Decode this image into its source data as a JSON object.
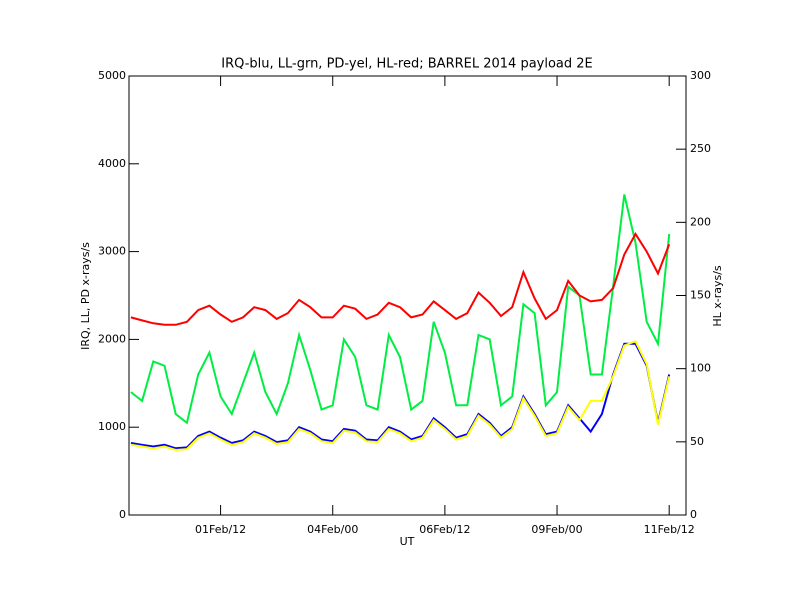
{
  "chart_data": {
    "type": "line",
    "title": "IRQ-blu, LL-grn, PD-yel, HL-red; BARREL 2014 payload 2E",
    "xlabel": "UT",
    "ylabel": "IRQ, LL, PD x-rays/s",
    "y2label": "HL x-rays/s",
    "x": [
      "2014-01-30T12:00",
      "2014-01-30T18:00",
      "2014-01-31T00:00",
      "2014-01-31T06:00",
      "2014-01-31T12:00",
      "2014-01-31T18:00",
      "2014-02-01T00:00",
      "2014-02-01T06:00",
      "2014-02-01T12:00",
      "2014-02-01T18:00",
      "2014-02-02T00:00",
      "2014-02-02T06:00",
      "2014-02-02T12:00",
      "2014-02-02T18:00",
      "2014-02-03T00:00",
      "2014-02-03T06:00",
      "2014-02-03T12:00",
      "2014-02-03T18:00",
      "2014-02-04T00:00",
      "2014-02-04T06:00",
      "2014-02-04T12:00",
      "2014-02-04T18:00",
      "2014-02-05T00:00",
      "2014-02-05T06:00",
      "2014-02-05T12:00",
      "2014-02-05T18:00",
      "2014-02-06T00:00",
      "2014-02-06T06:00",
      "2014-02-06T12:00",
      "2014-02-06T18:00",
      "2014-02-07T00:00",
      "2014-02-07T06:00",
      "2014-02-07T12:00",
      "2014-02-07T18:00",
      "2014-02-08T00:00",
      "2014-02-08T06:00",
      "2014-02-08T12:00",
      "2014-02-08T18:00",
      "2014-02-09T00:00",
      "2014-02-09T06:00",
      "2014-02-09T12:00",
      "2014-02-09T18:00",
      "2014-02-10T00:00",
      "2014-02-10T06:00",
      "2014-02-10T12:00",
      "2014-02-10T18:00",
      "2014-02-11T00:00",
      "2014-02-11T06:00",
      "2014-02-11T12:00"
    ],
    "series": [
      {
        "color": "#00ee44",
        "values": [
          1400,
          1300,
          1750,
          1700,
          1150,
          1050,
          1600,
          1850,
          1350,
          1150,
          1500,
          1850,
          1400,
          1150,
          1500,
          2050,
          1650,
          1200,
          1250,
          2000,
          1800,
          1250,
          1200,
          2050,
          1800,
          1200,
          1300,
          2200,
          1850,
          1250,
          1250,
          2050,
          2000,
          1250,
          1350,
          2400,
          2300,
          1250,
          1400,
          2600,
          2500,
          1600,
          1600,
          2600,
          3650,
          3100,
          2200,
          1950,
          3200
        ]
      },
      {
        "color": "#0000ff",
        "values": [
          820,
          800,
          780,
          800,
          760,
          770,
          900,
          950,
          880,
          820,
          850,
          950,
          900,
          830,
          850,
          1000,
          950,
          860,
          840,
          980,
          960,
          860,
          850,
          1000,
          950,
          860,
          900,
          1100,
          1000,
          880,
          920,
          1150,
          1050,
          900,
          1000,
          1350,
          1150,
          920,
          950,
          1250,
          1100,
          950,
          1150,
          1600,
          1950,
          1950,
          1700,
          1050,
          1600
        ]
      },
      {
        "color": "#ffff00",
        "values": [
          800,
          780,
          760,
          780,
          740,
          750,
          880,
          930,
          860,
          800,
          830,
          930,
          880,
          810,
          830,
          980,
          930,
          840,
          820,
          960,
          940,
          840,
          830,
          980,
          930,
          840,
          880,
          1080,
          980,
          860,
          900,
          1130,
          1030,
          880,
          980,
          1330,
          1130,
          900,
          930,
          1230,
          1080,
          1300,
          1300,
          1580,
          1930,
          1980,
          1720,
          1030,
          1580
        ]
      },
      {
        "color": "#ff0000",
        "axis": "y2",
        "values": [
          135,
          133,
          131,
          130,
          130,
          132,
          140,
          143,
          137,
          132,
          135,
          142,
          140,
          134,
          138,
          147,
          142,
          135,
          135,
          143,
          141,
          134,
          137,
          145,
          142,
          135,
          137,
          146,
          140,
          134,
          138,
          152,
          145,
          136,
          142,
          166,
          148,
          134,
          140,
          160,
          150,
          146,
          147,
          155,
          178,
          192,
          180,
          165,
          185
        ]
      }
    ],
    "xlim": [
      "2014-01-30T11:00",
      "2014-02-11T21:00"
    ],
    "xticks": [
      {
        "value": "2014-02-01T12:00",
        "label": "01Feb/12"
      },
      {
        "value": "2014-02-04T00:00",
        "label": "04Feb/00"
      },
      {
        "value": "2014-02-06T12:00",
        "label": "06Feb/12"
      },
      {
        "value": "2014-02-09T00:00",
        "label": "09Feb/00"
      },
      {
        "value": "2014-02-11T12:00",
        "label": "11Feb/12"
      }
    ],
    "ylim": [
      0,
      5000
    ],
    "yticks": [
      0,
      1000,
      2000,
      3000,
      4000,
      5000
    ],
    "y2lim": [
      0,
      300
    ],
    "y2ticks": [
      0,
      50,
      100,
      150,
      200,
      250,
      300
    ]
  }
}
